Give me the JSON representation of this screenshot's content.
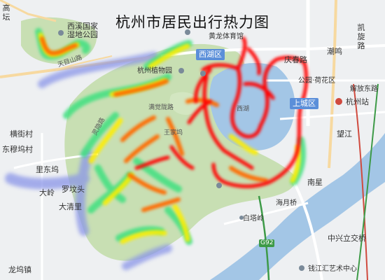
{
  "map_title": "杭州市居民出行热力图",
  "base_colors": {
    "land": "#eef0f2",
    "park": "#c8dfb3",
    "water": "#a3c6e6",
    "road_major": "#ffffff",
    "road_arterial": "#f7d9a0",
    "district_badge": "#5b8fd9"
  },
  "heat_colors": [
    "#8a95e8",
    "#39c8ff",
    "#3fe080",
    "#ffee00",
    "#ff6a00",
    "#ff0000"
  ],
  "district_badges": {
    "xihu": "西湖区",
    "shangcheng": "上城区"
  },
  "labels": {
    "gaotan": "高坛",
    "xixi": "西溪国家",
    "xixi2": "湿地公园",
    "tianmu": "天目山路",
    "hangzhou_zoo": "杭州植物园",
    "huanglong": "黄龙体育馆",
    "qingchun": "庆春路",
    "chaoming": "潮鸣",
    "kaixuan": "凯旋路",
    "gongyuan": "公园·荷花区",
    "jiefang": "解放东路",
    "hzstation": "杭州站",
    "wangjiang": "望江",
    "hengjie": "横街村",
    "dongmu": "东穆坞村",
    "lidong": "里东坞",
    "daling": "大岭",
    "luowen": "罗坟头",
    "daqingli": "大清里",
    "nanxing": "南星",
    "haiyuejiao": "海月桥",
    "baita": "白塔岭",
    "zhongxing": "中兴立交桥",
    "qianjiang_art": "钱江汇艺术中心",
    "longwu": "龙坞镇",
    "lingyin": "灵隐路",
    "manjuelong": "满觉陇路",
    "wanglaowu": "王家坞",
    "xihu_gate": "西湖"
  },
  "highway_shield": "G92"
}
